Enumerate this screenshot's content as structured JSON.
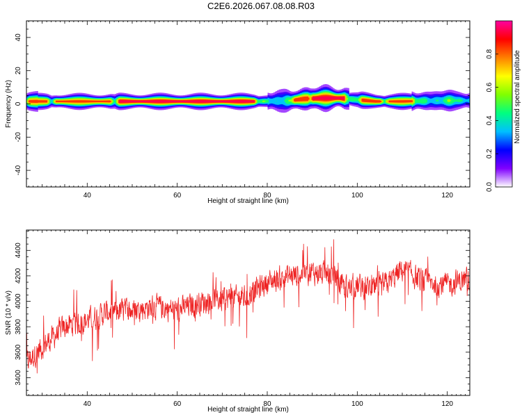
{
  "title": "C2E6.2026.067.08.08.R03",
  "chart_data": [
    {
      "type": "heatmap",
      "xlabel": "Height of straight line (km)",
      "ylabel": "Frequency (Hz)",
      "xlim": [
        26.5,
        125
      ],
      "ylim": [
        -50,
        50
      ],
      "x_ticks": [
        40,
        60,
        80,
        100,
        120
      ],
      "y_ticks": [
        -40,
        -20,
        0,
        20,
        40
      ],
      "colorbar": {
        "label": "Normalized spectral amplitude",
        "range": [
          0,
          1
        ],
        "ticks": [
          "0.0",
          "0.2",
          "0.4",
          "0.6",
          "0.8"
        ],
        "colors": [
          "#ffffff",
          "#8000ff",
          "#0000ff",
          "#00c0ff",
          "#00ff80",
          "#80ff00",
          "#ffff00",
          "#ff8000",
          "#ff0000",
          "#ff00a0"
        ]
      },
      "band": {
        "center_hz": [
          [
            27,
            1.5
          ],
          [
            40,
            1.5
          ],
          [
            60,
            1.5
          ],
          [
            78,
            1.5
          ],
          [
            85,
            2
          ],
          [
            88,
            3
          ],
          [
            92,
            3.5
          ],
          [
            96,
            3.5
          ],
          [
            100,
            2.5
          ],
          [
            104,
            1.5
          ],
          [
            110,
            1.5
          ],
          [
            118,
            2
          ],
          [
            125,
            2
          ]
        ],
        "peak_segments": [
          [
            27,
            31,
            0.85
          ],
          [
            33,
            45,
            0.85
          ],
          [
            47,
            77,
            0.95
          ],
          [
            86,
            89,
            0.9
          ],
          [
            90,
            97,
            0.95
          ],
          [
            101,
            105,
            0.9
          ],
          [
            107,
            112,
            0.85
          ]
        ]
      }
    },
    {
      "type": "line",
      "xlabel": "Height of straight line (km)",
      "ylabel": "SNR (10 * v/v)",
      "xlim": [
        26.5,
        125
      ],
      "ylim": [
        3260,
        4560
      ],
      "x_ticks": [
        40,
        60,
        80,
        100,
        120
      ],
      "y_ticks": [
        3400,
        3600,
        3800,
        4000,
        4200,
        4400
      ],
      "color": "#ee2222",
      "trend": [
        [
          26.5,
          3520
        ],
        [
          30,
          3640
        ],
        [
          35,
          3800
        ],
        [
          40,
          3850
        ],
        [
          45,
          3920
        ],
        [
          50,
          3930
        ],
        [
          55,
          3960
        ],
        [
          60,
          3930
        ],
        [
          65,
          3990
        ],
        [
          70,
          4020
        ],
        [
          75,
          4030
        ],
        [
          80,
          4150
        ],
        [
          85,
          4200
        ],
        [
          90,
          4230
        ],
        [
          95,
          4200
        ],
        [
          97,
          4100
        ],
        [
          100,
          4120
        ],
        [
          105,
          4100
        ],
        [
          108,
          4180
        ],
        [
          110,
          4250
        ],
        [
          115,
          4150
        ],
        [
          120,
          4130
        ],
        [
          125,
          4180
        ]
      ]
    }
  ]
}
